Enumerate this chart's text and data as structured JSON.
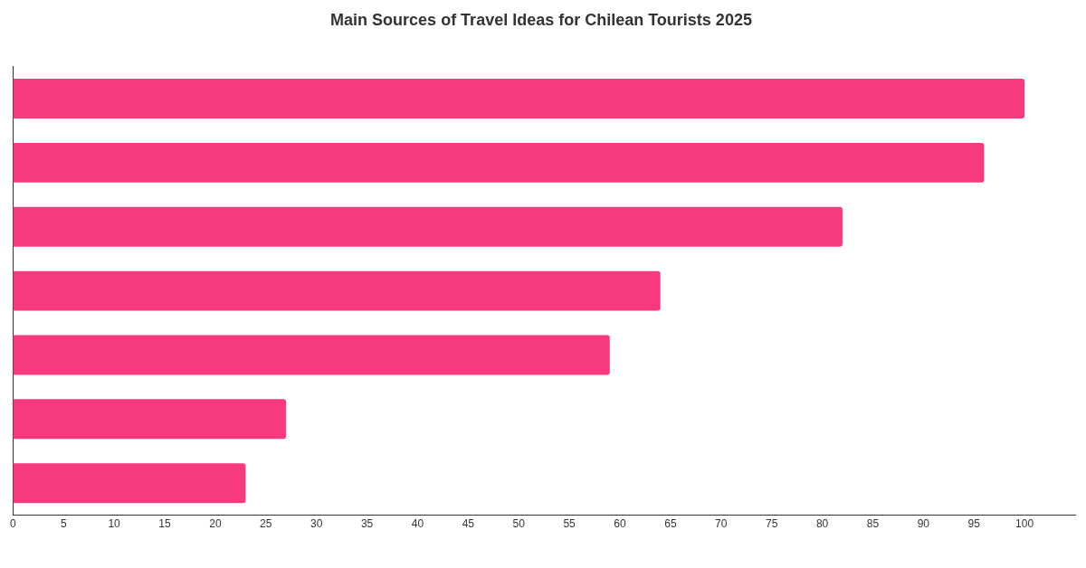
{
  "chart_data": {
    "type": "bar",
    "orientation": "horizontal",
    "title": "Main Sources of Travel Ideas for Chilean Tourists 2025",
    "categories": [
      null,
      null,
      null,
      null,
      null,
      null,
      null
    ],
    "values": [
      100,
      96,
      82,
      64,
      59,
      27,
      23
    ],
    "color": "#f73a7d",
    "xlim": [
      0,
      105
    ],
    "xticks": [
      0,
      5,
      10,
      15,
      20,
      25,
      30,
      35,
      40,
      45,
      50,
      55,
      60,
      65,
      70,
      75,
      80,
      85,
      90,
      95,
      100
    ],
    "grid": false,
    "legend": false
  }
}
